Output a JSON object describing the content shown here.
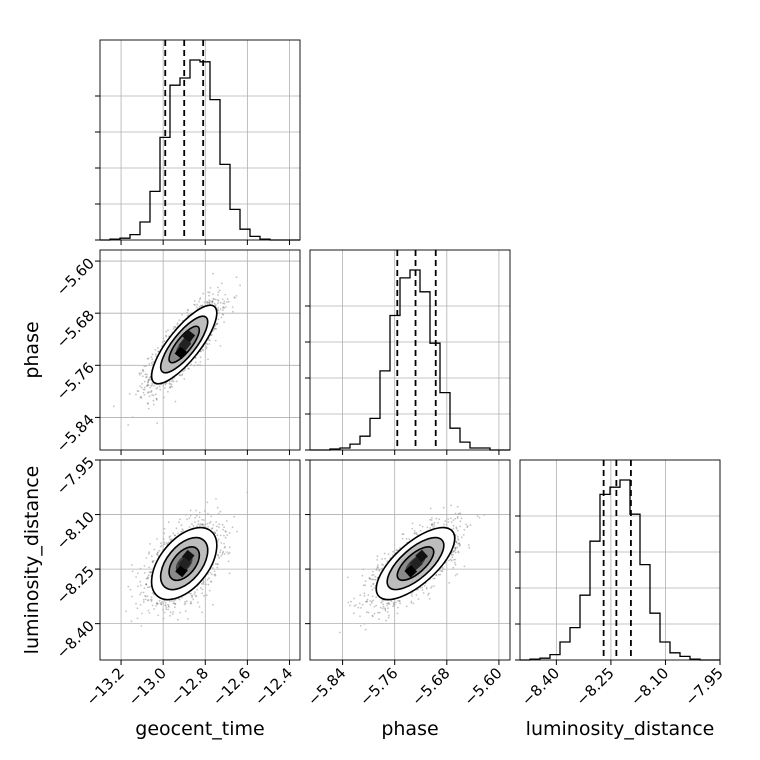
{
  "chart_data": {
    "type": "corner",
    "parameters": [
      "geocent_time",
      "phase",
      "luminosity_distance"
    ],
    "ranges": {
      "geocent_time": [
        -13.3,
        -12.35
      ],
      "phase": [
        -5.89,
        -5.583
      ],
      "luminosity_distance": [
        -8.5,
        -7.95
      ]
    },
    "ticks": {
      "geocent_time": {
        "values": [
          -13.2,
          -13.0,
          -12.8,
          -12.6,
          -12.4
        ],
        "labels": [
          "−13.2",
          "−13.0",
          "−12.8",
          "−12.6",
          "−12.4"
        ]
      },
      "phase": {
        "values": [
          -5.84,
          -5.76,
          -5.68,
          -5.6
        ],
        "labels": [
          "−5.84",
          "−5.76",
          "−5.68",
          "−5.60"
        ]
      },
      "luminosity_distance": {
        "values": [
          -8.4,
          -8.25,
          -8.1,
          -7.95
        ],
        "labels": [
          "−8.40",
          "−8.25",
          "−8.10",
          "−7.95"
        ]
      }
    },
    "quantiles": {
      "geocent_time": [
        -12.99,
        -12.9,
        -12.81
      ],
      "phase": [
        -5.756,
        -5.728,
        -5.697
      ],
      "luminosity_distance": [
        -8.27,
        -8.235,
        -8.195
      ]
    },
    "histograms": {
      "geocent_time": {
        "edges_range": [
          -13.3,
          -12.35
        ],
        "bins": 20,
        "counts": [
          0,
          0.5,
          1,
          3,
          10,
          27,
          57,
          86,
          90,
          100,
          99,
          78,
          42,
          17,
          6,
          2,
          0.5,
          0,
          0,
          0
        ]
      },
      "phase": {
        "edges_range": [
          -5.89,
          -5.583
        ],
        "bins": 20,
        "counts": [
          0,
          0,
          0.5,
          1,
          3,
          7,
          16,
          40,
          68,
          87,
          91,
          80,
          54,
          29,
          11,
          4,
          1,
          1,
          0,
          0
        ]
      },
      "luminosity_distance": {
        "edges_range": [
          -8.5,
          -7.95
        ],
        "bins": 20,
        "counts": [
          0,
          0.5,
          1,
          3,
          10,
          18,
          36,
          66,
          92,
          96,
          100,
          81,
          53,
          26,
          10,
          4,
          2,
          0.5,
          0,
          0
        ]
      }
    },
    "correlations": {
      "phase|geocent_time": 0.8,
      "luminosity_distance|geocent_time": 0.5,
      "luminosity_distance|phase": 0.7
    },
    "std": {
      "geocent_time": 0.072,
      "phase": 0.028,
      "luminosity_distance": 0.046
    },
    "grid": true
  }
}
